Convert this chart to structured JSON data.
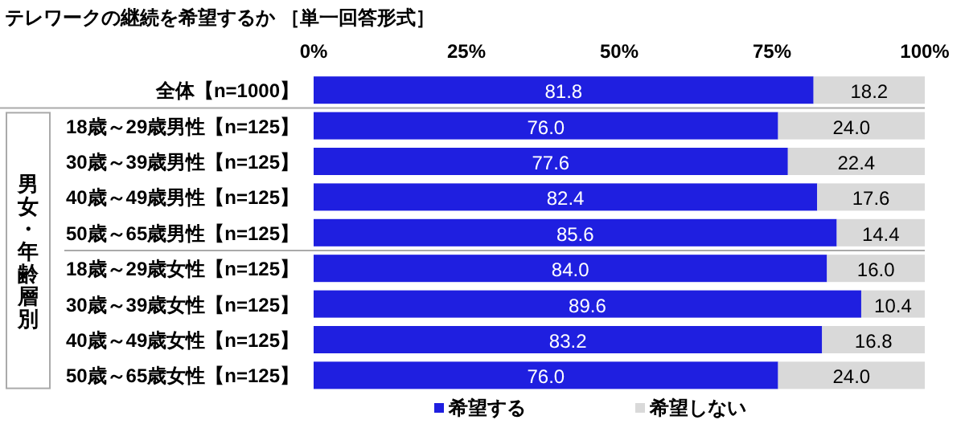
{
  "chart_data": {
    "type": "bar",
    "orientation": "horizontal",
    "stacked": true,
    "title": "テレワークの継続を希望するか ［単一回答形式］",
    "categories": [
      "全体【n=1000】",
      "18歳～29歳男性【n=125】",
      "30歳～39歳男性【n=125】",
      "40歳～49歳男性【n=125】",
      "50歳～65歳男性【n=125】",
      "18歳～29歳女性【n=125】",
      "30歳～39歳女性【n=125】",
      "40歳～49歳女性【n=125】",
      "50歳～65歳女性【n=125】"
    ],
    "series": [
      {
        "name": "希望する",
        "color": "#1f1fe0",
        "values": [
          81.8,
          76.0,
          77.6,
          82.4,
          85.6,
          84.0,
          89.6,
          83.2,
          76.0
        ],
        "value_labels": [
          "81.8",
          "76.0",
          "77.6",
          "82.4",
          "85.6",
          "84.0",
          "89.6",
          "83.2",
          "76.0"
        ]
      },
      {
        "name": "希望しない",
        "color": "#d9d9d9",
        "values": [
          18.2,
          24.0,
          22.4,
          17.6,
          14.4,
          16.0,
          10.4,
          16.8,
          24.0
        ],
        "value_labels": [
          "18.2",
          "24.0",
          "22.4",
          "17.6",
          "14.4",
          "16.0",
          "10.4",
          "16.8",
          "24.0"
        ]
      }
    ],
    "xlim": [
      0,
      100
    ],
    "xticks": [
      {
        "value": 0,
        "label": "0%"
      },
      {
        "value": 25,
        "label": "25%"
      },
      {
        "value": 50,
        "label": "50%"
      },
      {
        "value": 75,
        "label": "75%"
      },
      {
        "value": 100,
        "label": "100%"
      }
    ],
    "legend": "bottom",
    "grid": false,
    "annotations": [
      "男女・年齢層別"
    ]
  }
}
